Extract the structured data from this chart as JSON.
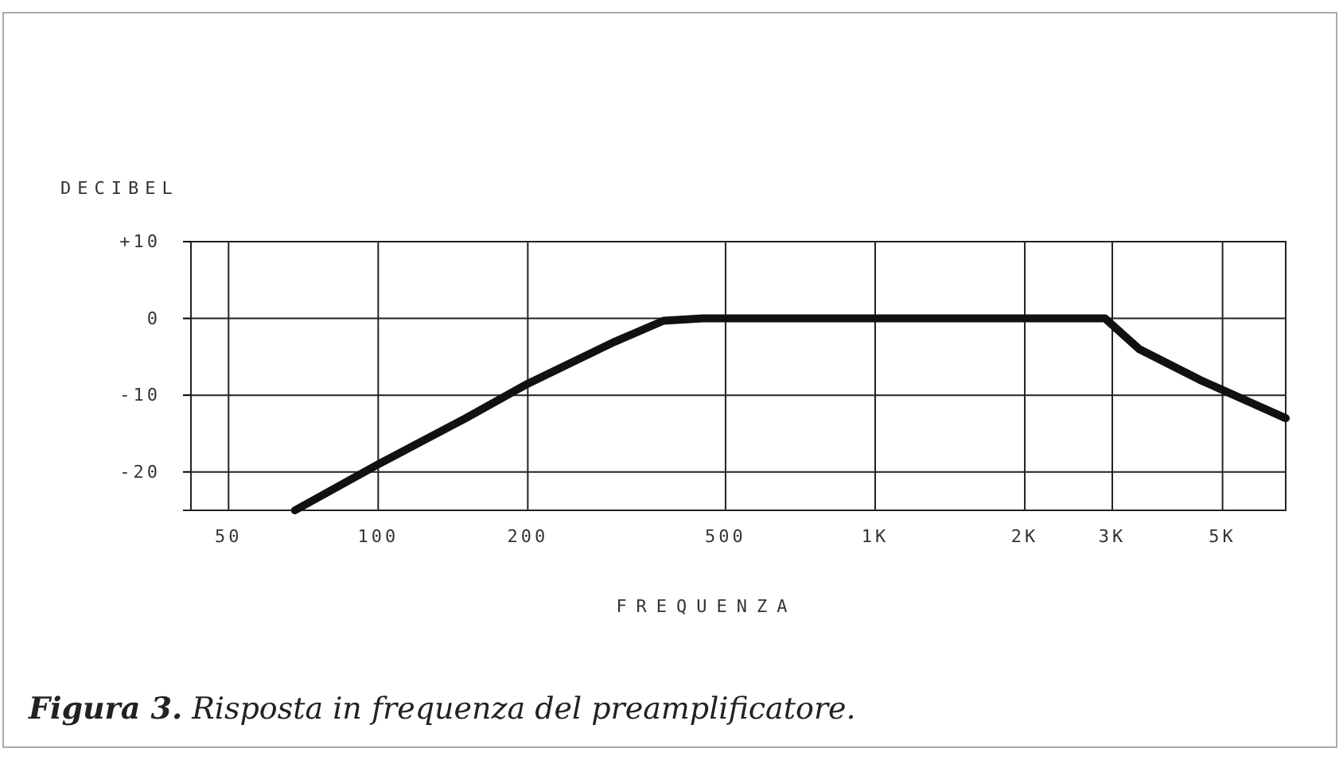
{
  "chart_data": {
    "type": "line",
    "ylabel": "DECIBEL",
    "xlabel": "FREQUENZA",
    "log": "x",
    "grid": true,
    "marker": "none",
    "line_style": "solid",
    "x": [
      68,
      100,
      150,
      200,
      300,
      375,
      450,
      1000,
      2900,
      3400,
      4500,
      6700
    ],
    "series": [
      {
        "color": "#111111",
        "values": [
          -25,
          -19,
          -13,
          -8.5,
          -3,
          -0.3,
          0,
          0,
          0,
          -4,
          -8,
          -13
        ]
      }
    ],
    "xlim": [
      42,
      6700
    ],
    "xticks": [
      50,
      100,
      200,
      500,
      {
        "value": 1000,
        "label": "1K"
      },
      {
        "value": 2000,
        "label": "2K"
      },
      {
        "value": 3000,
        "label": "3K"
      },
      {
        "value": 5000,
        "label": "5K"
      }
    ],
    "ylim": [
      -25,
      10
    ],
    "yticks": [
      {
        "value": 10,
        "label": "+10"
      },
      0,
      -10,
      -20
    ],
    "annotations": [
      "Figura 3. Risposta in frequenza del preamplificatore."
    ]
  }
}
